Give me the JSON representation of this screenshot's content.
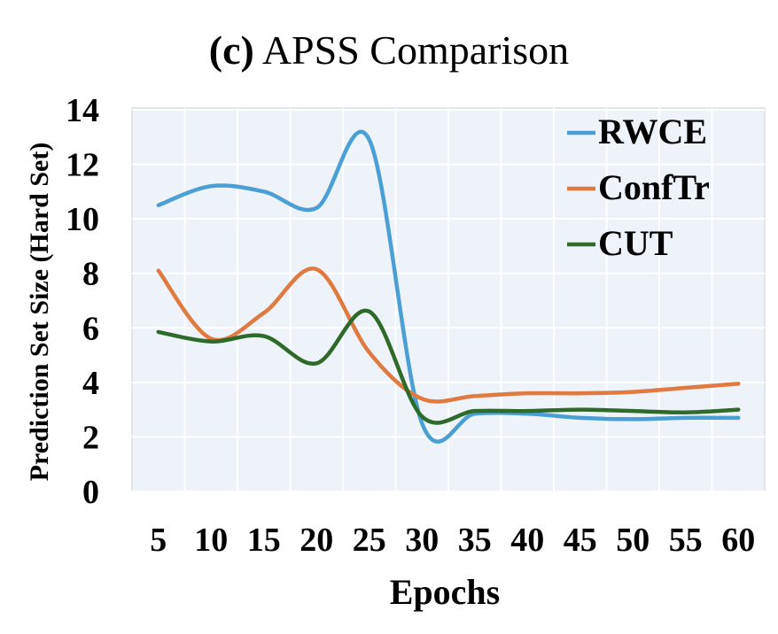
{
  "title_prefix": "(c)",
  "title_main": "APSS Comparison",
  "chart_data": {
    "type": "line",
    "title": "(c) APSS Comparison",
    "xlabel": "Epochs",
    "ylabel": "Prediction Set Size (Hard Set)",
    "categories": [
      "5",
      "10",
      "15",
      "20",
      "25",
      "30",
      "35",
      "40",
      "45",
      "50",
      "55",
      "60"
    ],
    "ylim": [
      0,
      14
    ],
    "yticks": [
      "0",
      "2",
      "4",
      "6",
      "8",
      "10",
      "12",
      "14"
    ],
    "grid": true,
    "smoothed": true,
    "legend_position": "top-right",
    "background": "#eef3fa",
    "series": [
      {
        "name": "RWCE",
        "color": "#4a9fd4",
        "values": [
          10.5,
          11.2,
          11.0,
          10.4,
          12.9,
          2.5,
          2.85,
          2.85,
          2.7,
          2.65,
          2.7,
          2.7
        ]
      },
      {
        "name": "ConfTr",
        "color": "#e07a40",
        "values": [
          8.1,
          5.6,
          6.55,
          8.15,
          5.1,
          3.4,
          3.5,
          3.6,
          3.6,
          3.65,
          3.8,
          3.95
        ]
      },
      {
        "name": "CUT",
        "color": "#2e6b2a",
        "values": [
          5.85,
          5.5,
          5.7,
          4.7,
          6.6,
          2.75,
          2.95,
          2.95,
          3.0,
          2.95,
          2.9,
          3.0
        ]
      }
    ]
  }
}
